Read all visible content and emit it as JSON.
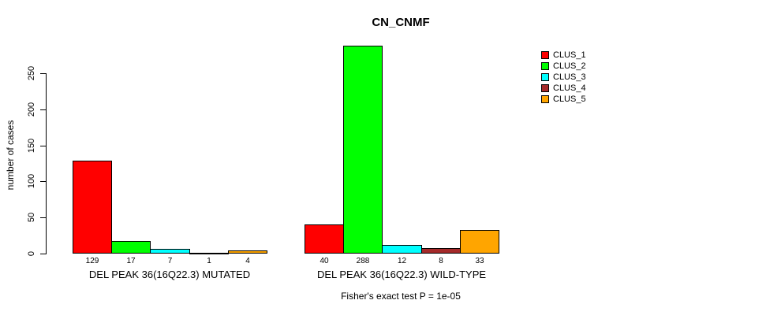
{
  "chart_data": {
    "type": "bar",
    "title": "CN_CNMF",
    "ylabel": "number of cases",
    "xlabel": "",
    "ylim": [
      0,
      288
    ],
    "yticks": [
      0,
      50,
      100,
      150,
      200,
      250
    ],
    "grid": false,
    "legend_position": "right",
    "categories": [
      "DEL PEAK 36(16Q22.3) MUTATED",
      "DEL PEAK 36(16Q22.3) WILD-TYPE"
    ],
    "series": [
      {
        "name": "CLUS_1",
        "color": "#ff0000",
        "values": [
          129,
          40
        ]
      },
      {
        "name": "CLUS_2",
        "color": "#00ff00",
        "values": [
          17,
          288
        ]
      },
      {
        "name": "CLUS_3",
        "color": "#00ffff",
        "values": [
          7,
          12
        ]
      },
      {
        "name": "CLUS_4",
        "color": "#a52a2a",
        "values": [
          1,
          8
        ]
      },
      {
        "name": "CLUS_5",
        "color": "#ffa500",
        "values": [
          4,
          33
        ]
      }
    ],
    "bar_value_labels": [
      [
        129,
        17,
        7,
        1,
        4
      ],
      [
        40,
        288,
        12,
        8,
        33
      ]
    ],
    "annotation": "Fisher's exact test P = 1e-05"
  }
}
